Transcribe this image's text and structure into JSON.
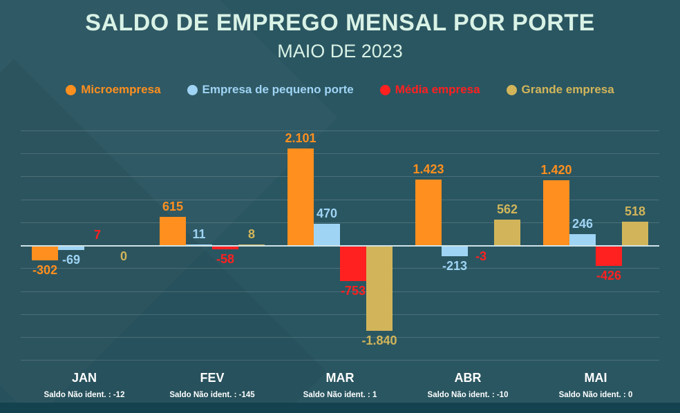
{
  "header": {
    "title": "SALDO DE EMPREGO MENSAL  POR PORTE",
    "subtitle": "MAIO DE 2023"
  },
  "chart_data": {
    "type": "bar",
    "title": "SALDO DE EMPREGO MENSAL POR PORTE",
    "subtitle": "MAIO DE 2023",
    "categories": [
      "JAN",
      "FEV",
      "MAR",
      "ABR",
      "MAI"
    ],
    "series": [
      {
        "name": "Microempresa",
        "color": "#ff8f1f",
        "values": [
          -302,
          615,
          2101,
          1423,
          1420
        ],
        "labels": [
          "-302",
          "615",
          "2.101",
          "1.423",
          "1.420"
        ]
      },
      {
        "name": "Empresa de pequeno porte",
        "color": "#9fd4f5",
        "values": [
          -69,
          11,
          470,
          -213,
          246
        ],
        "labels": [
          "-69",
          "11",
          "470",
          "-213",
          "246"
        ]
      },
      {
        "name": "Média empresa",
        "color": "#ff2020",
        "values": [
          7,
          -58,
          -753,
          -3,
          -426
        ],
        "labels": [
          "7",
          "-58",
          "-753",
          "-3",
          "-426"
        ]
      },
      {
        "name": "Grande empresa",
        "color": "#d2b55a",
        "values": [
          0,
          8,
          -1840,
          562,
          518
        ],
        "labels": [
          "0",
          "8",
          "-1.840",
          "562",
          "518"
        ]
      }
    ],
    "footnotes": [
      "Saldo Não ident. : -12",
      "Saldo Não ident. : -145",
      "Saldo Não ident. : 1",
      "Saldo Não ident. : -10",
      "Saldo Não ident. : 0"
    ],
    "ylim": [
      -2500,
      2500
    ],
    "gridline_step": 500,
    "grid": true,
    "legend_position": "top"
  }
}
